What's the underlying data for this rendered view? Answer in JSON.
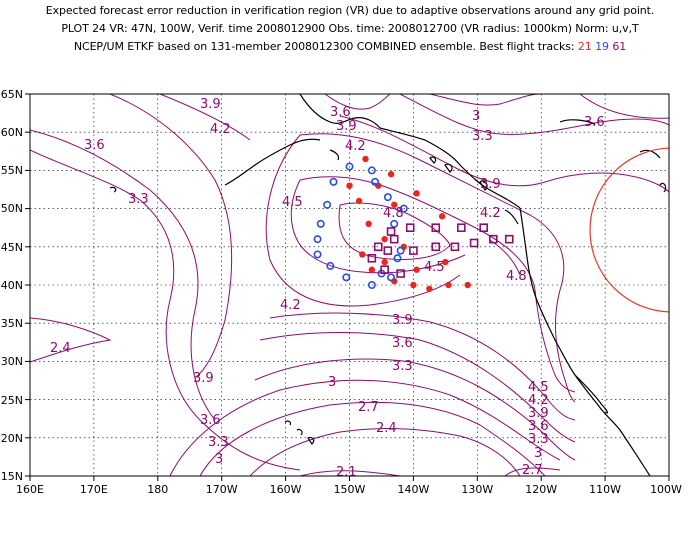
{
  "header": {
    "line1": "Expected forecast error reduction in verification region (VR) due to adaptive observations around any grid point.",
    "line2": "PLOT 24 VR: 47N, 100W, Verif. time 2008012900 Obs. time: 2008012700 (VR radius: 1000km) Norm: u,v,T",
    "line3_prefix": "NCEP/UM ETKF based on 131-member 2008012300 COMBINED ensemble.  Best flight tracks:",
    "track_red": "21",
    "track_blue": "19",
    "track_purple": "61"
  },
  "colors": {
    "contour": "#8b0e6e",
    "coast": "#000000",
    "vr_circle": "#e03a2a",
    "track_red": "#e8281e",
    "track_blue": "#2a4fe0",
    "track_purple": "#8b0e6e"
  },
  "axes": {
    "x_ticks": [
      "160E",
      "170E",
      "180",
      "170W",
      "160W",
      "150W",
      "140W",
      "130W",
      "120W",
      "110W",
      "100W"
    ],
    "y_ticks": [
      "65N",
      "60N",
      "55N",
      "50N",
      "45N",
      "40N",
      "35N",
      "30N",
      "25N",
      "20N",
      "15N"
    ]
  },
  "contour_labels": [
    "3.9",
    "4.2",
    "3.6",
    "3.6",
    "3.9",
    "3",
    "3.3",
    "3.6",
    "4.2",
    "3.3",
    "3.9",
    "4.5",
    "4.2",
    "4.8",
    "4.5",
    "4.8",
    "4.2",
    "3.9",
    "3.6",
    "3.3",
    "2.4",
    "3.9",
    "3",
    "2.7",
    "3.6",
    "2.4",
    "3.3",
    "3",
    "4.5",
    "4.2",
    "3.9",
    "3.6",
    "3.3",
    "3",
    "2.7",
    "2.1"
  ],
  "observations": {
    "red": [
      [
        -147.5,
        56.5
      ],
      [
        -143.5,
        54.5
      ],
      [
        -150,
        53
      ],
      [
        -145.5,
        53
      ],
      [
        -139.5,
        52
      ],
      [
        -148.5,
        51
      ],
      [
        -143,
        50.5
      ],
      [
        -135.5,
        49
      ],
      [
        -147,
        48
      ],
      [
        -144.5,
        46
      ],
      [
        -141.5,
        45
      ],
      [
        -148,
        44
      ],
      [
        -144.5,
        43
      ],
      [
        -139.5,
        42
      ],
      [
        -135,
        43
      ],
      [
        -143,
        40.5
      ],
      [
        -140,
        40
      ],
      [
        -137.5,
        39.5
      ],
      [
        -134.5,
        40
      ],
      [
        -131.5,
        40
      ],
      [
        -146.5,
        42
      ]
    ],
    "blue": [
      [
        -150,
        55.5
      ],
      [
        -146.5,
        55
      ],
      [
        -152.5,
        53.5
      ],
      [
        -146,
        53.5
      ],
      [
        -144,
        51.5
      ],
      [
        -153.5,
        50.5
      ],
      [
        -141.5,
        50
      ],
      [
        -154.5,
        48
      ],
      [
        -143,
        48
      ],
      [
        -155,
        46
      ],
      [
        -142,
        44.5
      ],
      [
        -155,
        44
      ],
      [
        -142.5,
        43.5
      ],
      [
        -153,
        42.5
      ],
      [
        -145,
        41.5
      ],
      [
        -150.5,
        41
      ],
      [
        -146.5,
        40
      ],
      [
        -143.5,
        41
      ]
    ],
    "purple": [
      [
        -143.5,
        47
      ],
      [
        -140.5,
        47.5
      ],
      [
        -136.5,
        47.5
      ],
      [
        -132.5,
        47.5
      ],
      [
        -129,
        47.5
      ],
      [
        -127.5,
        46
      ],
      [
        -125,
        46
      ],
      [
        -130.5,
        45.5
      ],
      [
        -133.5,
        45
      ],
      [
        -136.5,
        45
      ],
      [
        -140,
        44.5
      ],
      [
        -144,
        44.5
      ],
      [
        -145.5,
        45
      ],
      [
        -146.5,
        43.5
      ],
      [
        -144.5,
        42
      ],
      [
        -142,
        41.5
      ],
      [
        -143,
        46
      ]
    ]
  }
}
